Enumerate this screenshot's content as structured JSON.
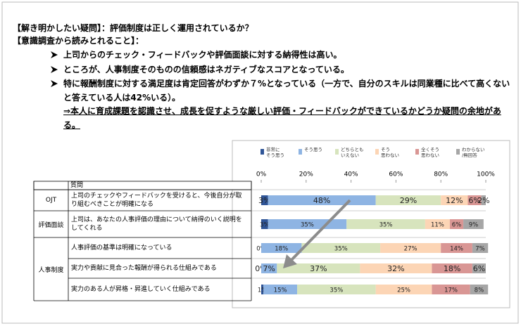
{
  "header": {
    "question": "【解き明かしたい疑問】：評価制度は正しく運用されているか？",
    "findings_title": "【意識調査から読みとれること】：",
    "bullets": [
      "上司からのチェック・フィードバックや評価面談に対する納得性は高い。",
      "ところが、人事制度そのものの信頼感はネガティブなスコアとなっている。",
      "特に報酬制度に対する満足度は肯定回答がわずか７%となっている（一方で、自分のスキルは同業種に比べて高くないと答えている人は42%いる）。"
    ],
    "conclusion": "⇒本人に育成課題を認識させ、成長を促すような厳しい評価・フィードバックができているかどうか疑問の余地がある。"
  },
  "table": {
    "column_header": "質問",
    "groups": [
      "OJT",
      "評価面談",
      "人事制度"
    ]
  },
  "chart_data": {
    "type": "stacked_bar_horizontal",
    "categories": [
      "上司のチェックやフィードバックを受けると、今後自分が取り組むべきことが明確になる",
      "上司は、あなたの人事評価の理由について納得のいく説明をしてくれる",
      "人事評価の基準は明確になっている",
      "実力や貢献に見合った報酬が得られる仕組みである",
      "実力のある人が昇格・昇進していく仕組みである"
    ],
    "xlim": [
      0,
      100
    ],
    "xticks": [
      {
        "value": 0,
        "label": "0%"
      },
      {
        "value": 20,
        "label": "20%"
      },
      {
        "value": 40,
        "label": "40%"
      },
      {
        "value": 60,
        "label": "60%"
      },
      {
        "value": 80,
        "label": "80%"
      },
      {
        "value": 100,
        "label": "100%"
      }
    ],
    "series": [
      {
        "name": "非常に\nそう思う",
        "color": "#2f5597",
        "values": [
          3,
          3,
          0,
          0,
          1
        ],
        "value_labels": [
          "3%",
          "3%",
          "0%",
          "0%",
          "1%"
        ]
      },
      {
        "name": "そう思う",
        "color": "#8eb4e3",
        "values": [
          48,
          35,
          18,
          7,
          15
        ],
        "value_labels": [
          "48%",
          "35%",
          "18%",
          "7%",
          "15%"
        ]
      },
      {
        "name": "どちらとも\nいえない",
        "color": "#d7e4bd",
        "values": [
          29,
          35,
          35,
          37,
          35
        ],
        "value_labels": [
          "29%",
          "35%",
          "35%",
          "37%",
          "35%"
        ]
      },
      {
        "name": "そう\n思わない",
        "color": "#fcd5b5",
        "values": [
          12,
          11,
          27,
          32,
          25
        ],
        "value_labels": [
          "12%",
          "11%",
          "27%",
          "32%",
          "25%"
        ]
      },
      {
        "name": "全くそう\n思わない",
        "color": "#d99694",
        "values": [
          6,
          6,
          14,
          18,
          17
        ],
        "value_labels": [
          "6%",
          "6%",
          "14%",
          "18%",
          "17%"
        ]
      },
      {
        "name": "わからない\n/無回答",
        "color": "#a6a6a6",
        "values": [
          2,
          9,
          7,
          6,
          8
        ],
        "value_labels": [
          "2%",
          "9%",
          "7%",
          "6%",
          "8%"
        ]
      }
    ]
  }
}
